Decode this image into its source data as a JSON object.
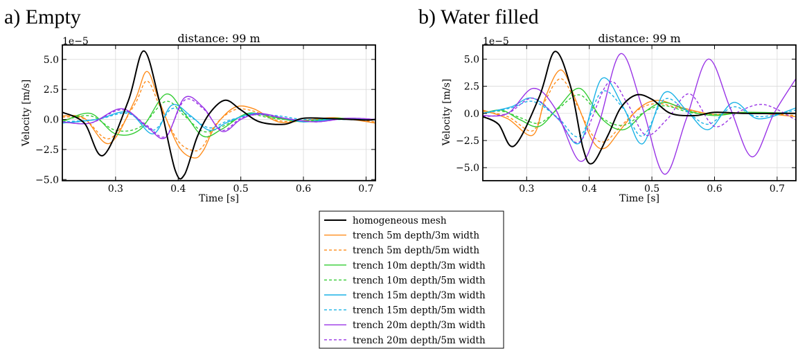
{
  "panels": [
    {
      "label": "a) Empty",
      "title": "distance: 99 m",
      "exponent": "1e−5",
      "xlabel": "Time [s]",
      "ylabel": "Velocity [m/s]",
      "xlim": [
        0.215,
        0.715
      ],
      "ylim": [
        -5.1,
        6.2
      ],
      "xticks": [
        {
          "v": 0.3,
          "t": "0.3"
        },
        {
          "v": 0.4,
          "t": "0.4"
        },
        {
          "v": 0.5,
          "t": "0.5"
        },
        {
          "v": 0.6,
          "t": "0.6"
        },
        {
          "v": 0.7,
          "t": "0.7"
        }
      ],
      "yticks": [
        {
          "v": 5.0,
          "t": "5.0"
        },
        {
          "v": 2.5,
          "t": "2.5"
        },
        {
          "v": 0.0,
          "t": "0.0"
        },
        {
          "v": -2.5,
          "t": "−2.5"
        },
        {
          "v": -5.0,
          "t": "−5.0"
        }
      ]
    },
    {
      "label": "b) Water filled",
      "title": "distance: 99 m",
      "exponent": "1e−5",
      "xlabel": "Time [s]",
      "ylabel": "Velocity [m/s]",
      "xlim": [
        0.23,
        0.73
      ],
      "ylim": [
        -6.2,
        6.3
      ],
      "xticks": [
        {
          "v": 0.3,
          "t": "0.3"
        },
        {
          "v": 0.4,
          "t": "0.4"
        },
        {
          "v": 0.5,
          "t": "0.5"
        },
        {
          "v": 0.6,
          "t": "0.6"
        },
        {
          "v": 0.7,
          "t": "0.7"
        }
      ],
      "yticks": [
        {
          "v": 5.0,
          "t": "5.0"
        },
        {
          "v": 2.5,
          "t": "2.5"
        },
        {
          "v": 0.0,
          "t": "0.0"
        },
        {
          "v": -2.5,
          "t": "−2.5"
        },
        {
          "v": -5.0,
          "t": "−5.0"
        }
      ]
    }
  ],
  "chart_data": [
    {
      "type": "line",
      "title": "distance: 99 m",
      "xlabel": "Time [s]",
      "ylabel": "Velocity [m/s]",
      "xlim": [
        0.215,
        0.715
      ],
      "ylim": [
        -5.1,
        6.2
      ],
      "grid": true,
      "legend_placement": "bottom-center",
      "series": [
        {
          "name": "homogeneous mesh",
          "color": "#000000",
          "dashed": false,
          "x": [
            0.215,
            0.25,
            0.28,
            0.32,
            0.345,
            0.37,
            0.395,
            0.41,
            0.43,
            0.45,
            0.475,
            0.5,
            0.53,
            0.57,
            0.6,
            0.65,
            0.7,
            0.715
          ],
          "y": [
            0.6,
            -0.3,
            -3.0,
            1.5,
            5.7,
            1.5,
            -4.2,
            -4.6,
            -1.5,
            0.5,
            1.6,
            0.8,
            -0.2,
            -0.4,
            0.1,
            0.05,
            -0.05,
            0.0
          ]
        },
        {
          "name": "trench 5m depth/3m width",
          "color": "#ff8c1a",
          "dashed": false,
          "x": [
            0.215,
            0.25,
            0.29,
            0.33,
            0.35,
            0.37,
            0.4,
            0.425,
            0.44,
            0.46,
            0.49,
            0.52,
            0.56,
            0.6,
            0.65,
            0.715
          ],
          "y": [
            0.3,
            0.1,
            -2.0,
            1.5,
            4.0,
            1.5,
            -2.2,
            -3.2,
            -2.6,
            -0.5,
            1.0,
            0.9,
            -0.2,
            -0.1,
            0.15,
            -0.3
          ]
        },
        {
          "name": "trench 5m depth/5m width",
          "color": "#ff8c1a",
          "dashed": true,
          "x": [
            0.215,
            0.25,
            0.29,
            0.33,
            0.35,
            0.37,
            0.4,
            0.425,
            0.44,
            0.46,
            0.49,
            0.52,
            0.56,
            0.6,
            0.65,
            0.715
          ],
          "y": [
            0.2,
            0.05,
            -1.6,
            1.2,
            3.2,
            1.2,
            -1.8,
            -2.6,
            -2.2,
            -0.4,
            0.8,
            0.7,
            -0.1,
            -0.1,
            0.1,
            -0.2
          ]
        },
        {
          "name": "trench 10m depth/3m width",
          "color": "#33cc33",
          "dashed": false,
          "x": [
            0.215,
            0.26,
            0.3,
            0.34,
            0.38,
            0.41,
            0.44,
            0.47,
            0.51,
            0.55,
            0.6,
            0.65,
            0.715
          ],
          "y": [
            -0.2,
            0.5,
            -1.2,
            -0.8,
            2.1,
            0.5,
            -1.4,
            -0.8,
            0.5,
            0.2,
            -0.2,
            0.1,
            0.0
          ]
        },
        {
          "name": "trench 10m depth/5m width",
          "color": "#33cc33",
          "dashed": true,
          "x": [
            0.215,
            0.26,
            0.3,
            0.34,
            0.38,
            0.41,
            0.44,
            0.47,
            0.51,
            0.55,
            0.6,
            0.65,
            0.715
          ],
          "y": [
            -0.1,
            0.3,
            -0.9,
            -0.6,
            1.5,
            0.3,
            -1.0,
            -0.6,
            0.4,
            0.1,
            -0.1,
            0.05,
            0.0
          ]
        },
        {
          "name": "trench 15m depth/3m width",
          "color": "#1ab2e6",
          "dashed": false,
          "x": [
            0.215,
            0.27,
            0.32,
            0.36,
            0.39,
            0.42,
            0.45,
            0.48,
            0.52,
            0.56,
            0.6,
            0.65,
            0.715
          ],
          "y": [
            -0.3,
            0.0,
            0.6,
            -1.2,
            1.2,
            0.3,
            -0.9,
            -0.2,
            0.5,
            0.2,
            -0.2,
            0.0,
            0.0
          ]
        },
        {
          "name": "trench 15m depth/5m width",
          "color": "#1ab2e6",
          "dashed": true,
          "x": [
            0.215,
            0.27,
            0.32,
            0.36,
            0.39,
            0.42,
            0.45,
            0.48,
            0.52,
            0.56,
            0.6,
            0.65,
            0.715
          ],
          "y": [
            -0.2,
            0.0,
            0.5,
            -0.9,
            0.9,
            0.2,
            -0.7,
            -0.1,
            0.4,
            0.3,
            0.0,
            0.0,
            0.0
          ]
        },
        {
          "name": "trench 20m depth/3m width",
          "color": "#9933e6",
          "dashed": false,
          "x": [
            0.215,
            0.26,
            0.31,
            0.35,
            0.38,
            0.41,
            0.44,
            0.47,
            0.5,
            0.53,
            0.57,
            0.62,
            0.67,
            0.715
          ],
          "y": [
            -0.2,
            -0.3,
            0.9,
            -0.6,
            -1.5,
            1.8,
            1.0,
            -1.0,
            0.0,
            0.5,
            0.1,
            -0.2,
            0.1,
            0.0
          ]
        },
        {
          "name": "trench 20m depth/5m width",
          "color": "#9933e6",
          "dashed": true,
          "x": [
            0.215,
            0.26,
            0.31,
            0.35,
            0.38,
            0.41,
            0.44,
            0.47,
            0.5,
            0.53,
            0.57,
            0.62,
            0.67,
            0.715
          ],
          "y": [
            -0.2,
            -0.3,
            0.8,
            -0.5,
            -1.4,
            1.6,
            0.9,
            -0.9,
            0.1,
            0.4,
            0.1,
            -0.2,
            0.1,
            0.0
          ]
        }
      ]
    },
    {
      "type": "line",
      "title": "distance: 99 m",
      "xlabel": "Time [s]",
      "ylabel": "Velocity [m/s]",
      "xlim": [
        0.23,
        0.73
      ],
      "ylim": [
        -6.2,
        6.3
      ],
      "grid": true,
      "legend_placement": "bottom-center",
      "series": [
        {
          "name": "homogeneous mesh",
          "color": "#000000",
          "dashed": false,
          "x": [
            0.23,
            0.255,
            0.28,
            0.32,
            0.345,
            0.37,
            0.39,
            0.405,
            0.43,
            0.45,
            0.475,
            0.5,
            0.53,
            0.57,
            0.6,
            0.65,
            0.7,
            0.73
          ],
          "y": [
            -0.3,
            -1.0,
            -3.0,
            1.5,
            5.7,
            2.5,
            -3.2,
            -4.6,
            -2.0,
            0.5,
            1.7,
            1.3,
            0.0,
            -0.2,
            0.1,
            0.0,
            0.0,
            0.0
          ]
        },
        {
          "name": "trench 5m depth/3m width",
          "color": "#ff8c1a",
          "dashed": false,
          "x": [
            0.23,
            0.27,
            0.31,
            0.33,
            0.355,
            0.38,
            0.405,
            0.425,
            0.45,
            0.48,
            0.51,
            0.55,
            0.6,
            0.65,
            0.73
          ],
          "y": [
            0.3,
            -0.5,
            -2.0,
            1.5,
            4.0,
            1.0,
            -2.5,
            -3.2,
            -1.5,
            0.5,
            1.2,
            0.5,
            -0.1,
            0.1,
            -0.3
          ]
        },
        {
          "name": "trench 5m depth/5m width",
          "color": "#ff8c1a",
          "dashed": true,
          "x": [
            0.23,
            0.27,
            0.31,
            0.33,
            0.355,
            0.38,
            0.405,
            0.425,
            0.45,
            0.48,
            0.51,
            0.55,
            0.6,
            0.65,
            0.73
          ],
          "y": [
            0.2,
            -0.3,
            -1.6,
            1.2,
            3.2,
            0.8,
            -2.0,
            -2.6,
            -1.2,
            0.4,
            0.9,
            0.4,
            -0.1,
            0.1,
            -0.2
          ]
        },
        {
          "name": "trench 10m depth/3m width",
          "color": "#33cc33",
          "dashed": false,
          "x": [
            0.23,
            0.26,
            0.29,
            0.32,
            0.35,
            0.385,
            0.42,
            0.455,
            0.49,
            0.52,
            0.56,
            0.6,
            0.65,
            0.73
          ],
          "y": [
            0.0,
            0.3,
            -0.6,
            -1.2,
            0.5,
            2.3,
            -0.5,
            -1.5,
            0.2,
            1.0,
            0.2,
            -0.2,
            0.1,
            0.0
          ]
        },
        {
          "name": "trench 10m depth/5m width",
          "color": "#33cc33",
          "dashed": true,
          "x": [
            0.23,
            0.26,
            0.29,
            0.32,
            0.35,
            0.385,
            0.42,
            0.455,
            0.49,
            0.52,
            0.56,
            0.6,
            0.65,
            0.73
          ],
          "y": [
            0.0,
            0.2,
            -0.4,
            -0.9,
            0.4,
            1.7,
            -0.4,
            -1.1,
            0.2,
            0.7,
            0.1,
            -0.1,
            0.05,
            0.0
          ]
        },
        {
          "name": "trench 15m depth/3m width",
          "color": "#1ab2e6",
          "dashed": false,
          "x": [
            0.23,
            0.275,
            0.31,
            0.35,
            0.385,
            0.42,
            0.455,
            0.485,
            0.52,
            0.555,
            0.59,
            0.63,
            0.67,
            0.73
          ],
          "y": [
            0.0,
            0.6,
            1.4,
            -0.5,
            -2.7,
            3.2,
            0.5,
            -2.8,
            1.9,
            0.3,
            -1.5,
            1.0,
            -0.5,
            0.5
          ]
        },
        {
          "name": "trench 15m depth/5m width",
          "color": "#1ab2e6",
          "dashed": true,
          "x": [
            0.23,
            0.275,
            0.31,
            0.35,
            0.385,
            0.42,
            0.455,
            0.485,
            0.52,
            0.555,
            0.59,
            0.63,
            0.67,
            0.73
          ],
          "y": [
            0.0,
            0.5,
            1.1,
            -0.4,
            -2.1,
            2.0,
            0.4,
            -2.1,
            1.3,
            0.2,
            -1.0,
            0.6,
            -0.3,
            0.3
          ]
        },
        {
          "name": "trench 20m depth/3m width",
          "color": "#9933e6",
          "dashed": false,
          "x": [
            0.23,
            0.27,
            0.31,
            0.345,
            0.385,
            0.415,
            0.45,
            0.485,
            0.52,
            0.555,
            0.59,
            0.625,
            0.66,
            0.695,
            0.73
          ],
          "y": [
            -0.2,
            0.0,
            2.3,
            0.5,
            -4.4,
            -1.0,
            5.5,
            0.5,
            -5.6,
            -0.5,
            5.0,
            0.5,
            -4.0,
            0.0,
            3.2
          ]
        },
        {
          "name": "trench 20m depth/5m width",
          "color": "#9933e6",
          "dashed": true,
          "x": [
            0.23,
            0.27,
            0.31,
            0.35,
            0.385,
            0.43,
            0.46,
            0.49,
            0.525,
            0.56,
            0.6,
            0.64,
            0.68,
            0.73
          ],
          "y": [
            -0.3,
            0.0,
            1.4,
            -0.5,
            -2.6,
            2.8,
            1.0,
            -2.0,
            -0.5,
            1.8,
            -1.2,
            0.2,
            0.8,
            -0.6
          ]
        }
      ]
    }
  ]
}
